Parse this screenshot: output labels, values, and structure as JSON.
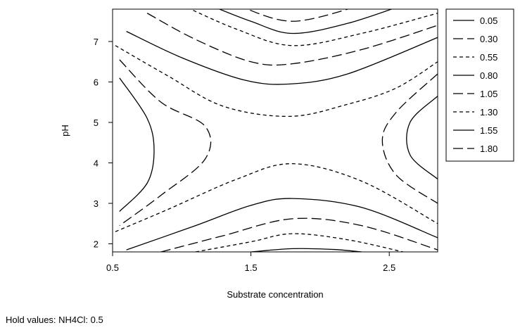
{
  "chart_data": {
    "type": "contour",
    "title": "",
    "xlabel": "Substrate concentration",
    "ylabel": "pH",
    "xlim": [
      0.5,
      2.85
    ],
    "ylim": [
      1.8,
      7.8
    ],
    "x_ticks": [
      0.5,
      1.5,
      2.5
    ],
    "x_tick_labels": [
      "0.5",
      "1.5",
      "2.5"
    ],
    "y_ticks": [
      2,
      3,
      4,
      5,
      6,
      7
    ],
    "y_tick_labels": [
      "2",
      "3",
      "4",
      "5",
      "6",
      "7"
    ],
    "grid": false,
    "legend_position": "right",
    "levels": [
      {
        "label": "0.05",
        "dash": "solid"
      },
      {
        "label": "0.30",
        "dash": "long-dash"
      },
      {
        "label": "0.55",
        "dash": "short-dash"
      },
      {
        "label": "0.80",
        "dash": "solid"
      },
      {
        "label": "1.05",
        "dash": "long-dash"
      },
      {
        "label": "1.30",
        "dash": "short-dash"
      },
      {
        "label": "1.55",
        "dash": "solid"
      },
      {
        "label": "1.80",
        "dash": "long-dash"
      }
    ],
    "contours": [
      {
        "dash": "solid",
        "points": [
          [
            0.55,
            6.1
          ],
          [
            0.75,
            5.1
          ],
          [
            0.8,
            4.3
          ],
          [
            0.75,
            3.5
          ],
          [
            0.55,
            2.8
          ]
        ]
      },
      {
        "dash": "long-dash",
        "points": [
          [
            0.55,
            6.55
          ],
          [
            0.85,
            5.5
          ],
          [
            1.17,
            4.9
          ],
          [
            1.17,
            4.1
          ],
          [
            0.85,
            3.2
          ],
          [
            0.55,
            2.45
          ]
        ]
      },
      {
        "dash": "short-dash",
        "points": [
          [
            0.52,
            6.9
          ],
          [
            0.9,
            6.15
          ],
          [
            1.3,
            5.4
          ],
          [
            1.78,
            5.15
          ],
          [
            2.2,
            5.45
          ],
          [
            2.55,
            5.85
          ],
          [
            2.85,
            6.5
          ]
        ]
      },
      {
        "dash": "solid",
        "points": [
          [
            0.6,
            7.25
          ],
          [
            1.0,
            6.6
          ],
          [
            1.45,
            6.05
          ],
          [
            1.78,
            5.95
          ],
          [
            2.2,
            6.2
          ],
          [
            2.85,
            7.1
          ]
        ]
      },
      {
        "dash": "long-dash",
        "points": [
          [
            0.75,
            7.7
          ],
          [
            1.1,
            7.05
          ],
          [
            1.5,
            6.5
          ],
          [
            1.8,
            6.45
          ],
          [
            2.3,
            6.8
          ],
          [
            2.85,
            7.4
          ]
        ]
      },
      {
        "dash": "short-dash",
        "points": [
          [
            1.0,
            7.9
          ],
          [
            1.4,
            7.3
          ],
          [
            1.8,
            6.9
          ],
          [
            2.3,
            7.2
          ],
          [
            2.85,
            7.7
          ]
        ]
      },
      {
        "dash": "solid",
        "points": [
          [
            1.2,
            7.9
          ],
          [
            1.5,
            7.5
          ],
          [
            1.8,
            7.2
          ],
          [
            2.2,
            7.45
          ],
          [
            2.6,
            7.9
          ]
        ]
      },
      {
        "dash": "long-dash",
        "points": [
          [
            1.4,
            7.9
          ],
          [
            1.8,
            7.5
          ],
          [
            2.3,
            7.9
          ]
        ]
      },
      {
        "dash": "solid",
        "points": [
          [
            2.85,
            5.65
          ],
          [
            2.65,
            5.0
          ],
          [
            2.65,
            4.2
          ],
          [
            2.85,
            3.6
          ]
        ]
      },
      {
        "dash": "long-dash",
        "points": [
          [
            2.85,
            6.2
          ],
          [
            2.55,
            5.25
          ],
          [
            2.45,
            4.55
          ],
          [
            2.55,
            3.7
          ],
          [
            2.85,
            3.0
          ]
        ]
      },
      {
        "dash": "short-dash",
        "points": [
          [
            0.52,
            2.3
          ],
          [
            0.9,
            2.85
          ],
          [
            1.4,
            3.6
          ],
          [
            1.8,
            3.98
          ],
          [
            2.3,
            3.55
          ],
          [
            2.85,
            2.5
          ]
        ]
      },
      {
        "dash": "solid",
        "points": [
          [
            0.6,
            1.85
          ],
          [
            1.1,
            2.45
          ],
          [
            1.5,
            2.95
          ],
          [
            1.8,
            3.12
          ],
          [
            2.3,
            2.9
          ],
          [
            2.85,
            2.15
          ]
        ]
      },
      {
        "dash": "long-dash",
        "points": [
          [
            0.85,
            1.8
          ],
          [
            1.3,
            2.2
          ],
          [
            1.8,
            2.62
          ],
          [
            2.3,
            2.45
          ],
          [
            2.85,
            1.85
          ]
        ]
      },
      {
        "dash": "short-dash",
        "points": [
          [
            1.1,
            1.8
          ],
          [
            1.5,
            2.05
          ],
          [
            1.8,
            2.25
          ],
          [
            2.2,
            2.1
          ],
          [
            2.6,
            1.8
          ]
        ]
      },
      {
        "dash": "solid",
        "points": [
          [
            1.5,
            1.8
          ],
          [
            1.8,
            1.88
          ],
          [
            2.1,
            1.86
          ],
          [
            2.3,
            1.8
          ]
        ]
      }
    ]
  },
  "footnote": "Hold values: NH4Cl: 0.5"
}
